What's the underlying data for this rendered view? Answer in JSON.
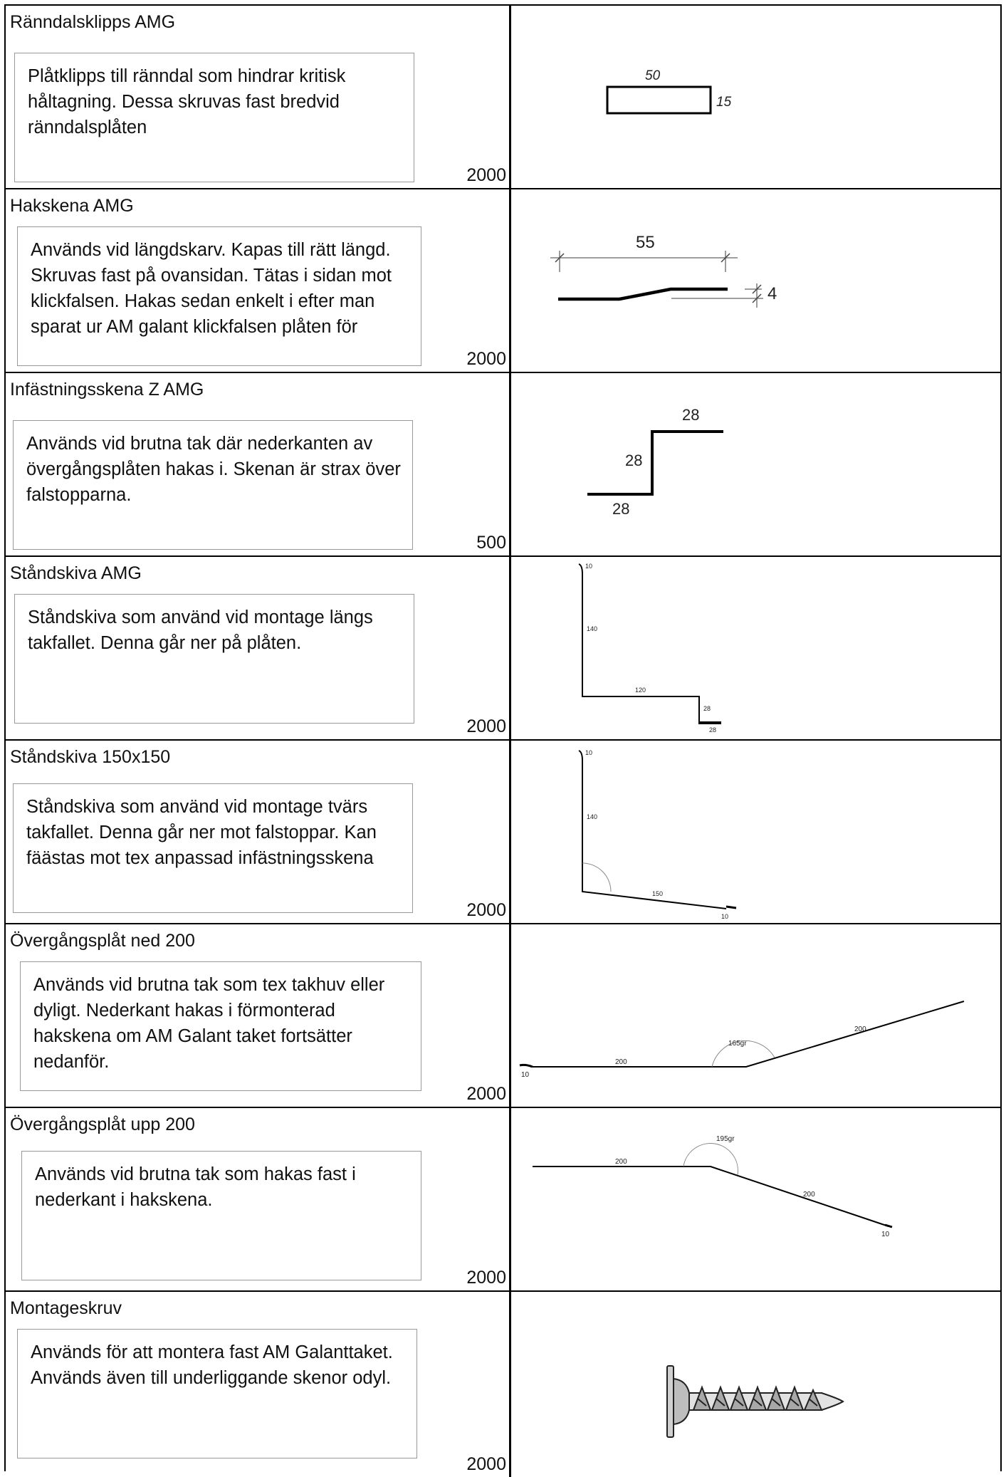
{
  "rows": [
    {
      "title": "Ränndalsklipps AMG",
      "description": "Plåtklipps till ränndal som hindrar kritisk håltagning. Dessa skruvas fast bredvid ränndalsplåten",
      "length": "2000",
      "dims": [
        "50",
        "15"
      ]
    },
    {
      "title": "Hakskena AMG",
      "description": "Används vid längdskarv. Kapas till rätt längd. Skruvas fast på ovansidan. Tätas i sidan mot klickfalsen. Hakas sedan enkelt i efter man sparat ur AM galant klickfalsen plåten för",
      "length": "2000",
      "dims": [
        "55",
        "4"
      ]
    },
    {
      "title": "Infästningsskena Z AMG",
      "description": "Används vid brutna tak där nederkanten av övergångsplåten hakas i. Skenan är strax över falstopparna.",
      "length": "500",
      "dims": [
        "28",
        "28",
        "28"
      ]
    },
    {
      "title": "Ståndskiva AMG",
      "description": "Ståndskiva som använd vid montage längs takfallet. Denna går ner på plåten.",
      "length": "2000",
      "dims": [
        "10",
        "140",
        "120",
        "28",
        "28"
      ]
    },
    {
      "title": "Ståndskiva 150x150",
      "description": "Ståndskiva som använd vid montage tvärs takfallet. Denna går ner mot falstoppar. Kan fäästas mot tex anpassad infästningsskena",
      "length": "2000",
      "dims": [
        "10",
        "140",
        "150",
        "10"
      ]
    },
    {
      "title": "Övergångsplåt ned 200",
      "description": "Används vid brutna tak som tex takhuv eller dyligt. Nederkant hakas i förmonterad hakskena om AM Galant taket fortsätter nedanför.",
      "length": "2000",
      "dims": [
        "10",
        "200",
        "165gr",
        "200"
      ]
    },
    {
      "title": "Övergångsplåt upp 200",
      "description": "Används vid brutna tak som hakas fast i nederkant i hakskena.",
      "length": "2000",
      "dims": [
        "200",
        "195gr",
        "200",
        "10"
      ]
    },
    {
      "title": "Montageskruv",
      "description": "Används för att montera fast AM Galanttaket. Används även till underliggande skenor odyl.",
      "length": "2000",
      "dims": []
    }
  ]
}
